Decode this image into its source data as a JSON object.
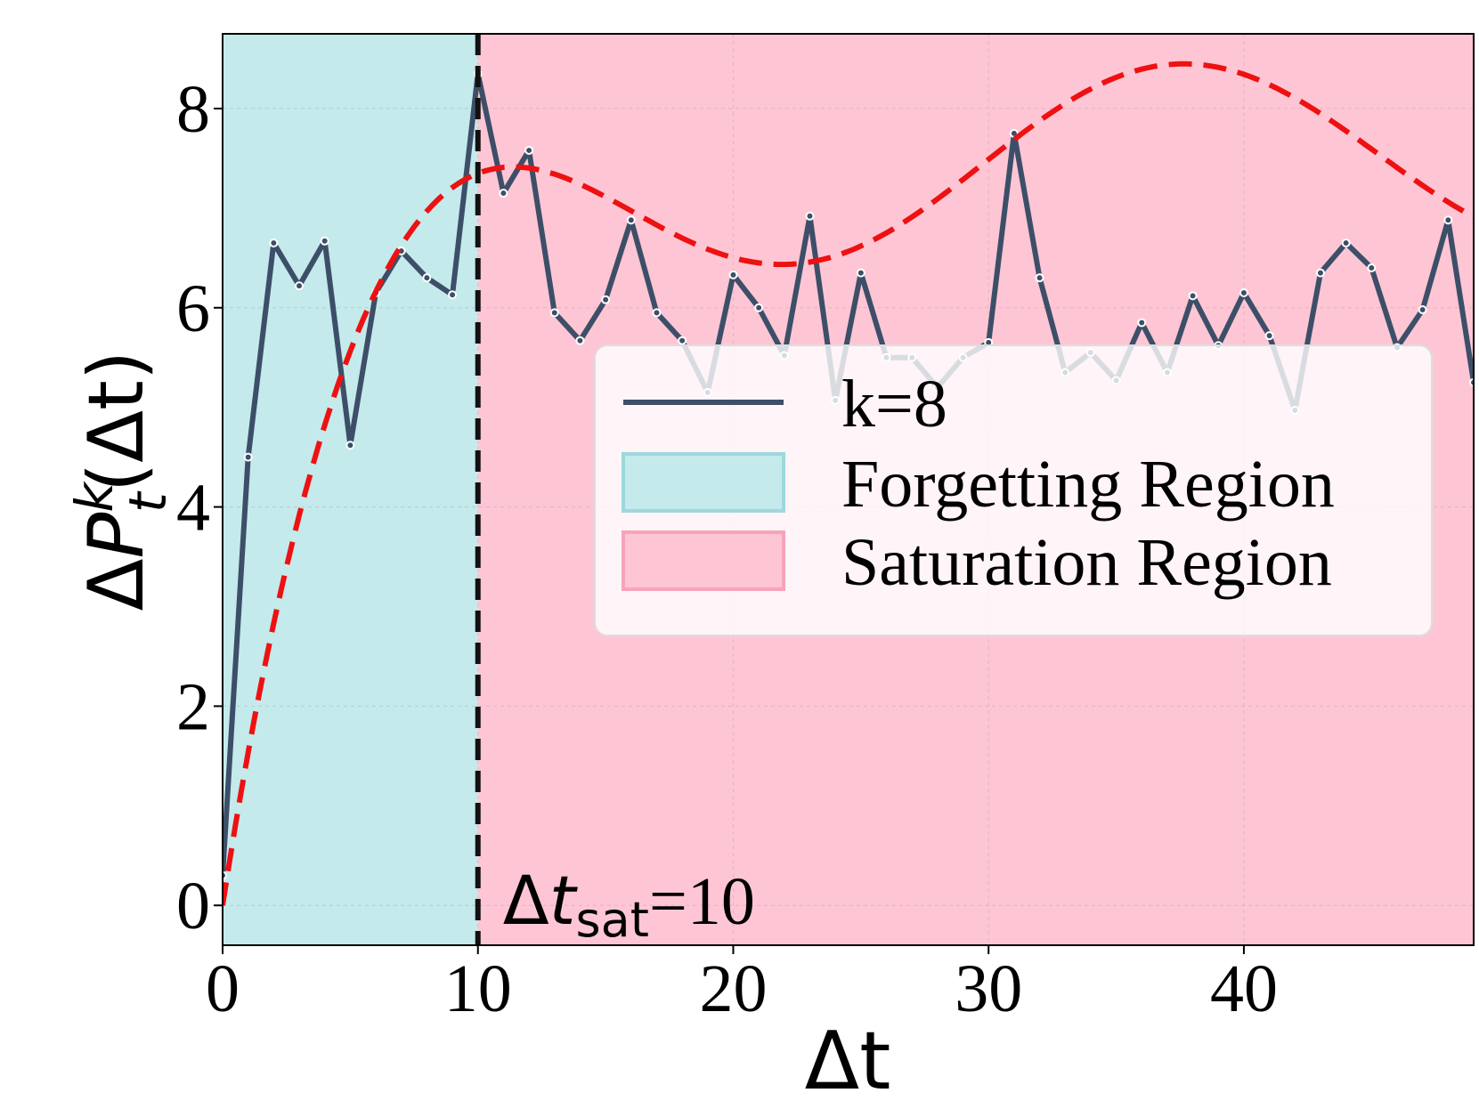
{
  "chart_data": {
    "type": "line",
    "xlabel": "Δt",
    "ylabel_parts": {
      "delta": "Δ",
      "symbol": "P",
      "sup": "k",
      "sub": "t",
      "arg": "(Δt)"
    },
    "xlim": [
      0,
      49
    ],
    "ylim": [
      -0.4,
      8.75
    ],
    "xticks": [
      0,
      10,
      20,
      30,
      40
    ],
    "yticks": [
      0,
      2,
      4,
      6,
      8
    ],
    "grid": true,
    "legend_position": "center-right",
    "series": [
      {
        "name": "k=8",
        "color": "#3d4f68",
        "x": [
          0,
          1,
          2,
          3,
          4,
          5,
          6,
          7,
          8,
          9,
          10,
          11,
          12,
          13,
          14,
          15,
          16,
          17,
          18,
          19,
          20,
          21,
          22,
          23,
          24,
          25,
          26,
          27,
          28,
          29,
          30,
          31,
          32,
          33,
          34,
          35,
          36,
          37,
          38,
          39,
          40,
          41,
          42,
          43,
          44,
          45,
          46,
          47,
          48,
          49
        ],
        "y": [
          0.3,
          4.5,
          6.65,
          6.22,
          6.67,
          4.62,
          6.15,
          6.57,
          6.3,
          6.13,
          8.35,
          7.15,
          7.58,
          5.95,
          5.67,
          6.08,
          6.88,
          5.95,
          5.67,
          5.15,
          6.33,
          6.0,
          5.52,
          6.92,
          5.07,
          6.35,
          5.5,
          5.5,
          5.2,
          5.5,
          5.65,
          7.75,
          6.3,
          5.35,
          5.55,
          5.27,
          5.85,
          5.35,
          6.12,
          5.62,
          6.15,
          5.72,
          4.97,
          6.35,
          6.65,
          6.4,
          5.6,
          5.98,
          6.88,
          5.25
        ]
      }
    ],
    "fit_curve": {
      "style": "dashed",
      "color": "#ee1111"
    },
    "regions": [
      {
        "name": "Forgetting Region",
        "from": 0,
        "to": 10,
        "color": "#c4eaec"
      },
      {
        "name": "Saturation Region",
        "from": 10,
        "to": 49,
        "color": "#fec6d5"
      }
    ],
    "threshold": {
      "x": 10,
      "label_main": "Δt",
      "label_sub": "sat",
      "label_value": "=10"
    },
    "legend": {
      "entries": [
        "k=8",
        "Forgetting Region",
        "Saturation Region"
      ]
    }
  }
}
